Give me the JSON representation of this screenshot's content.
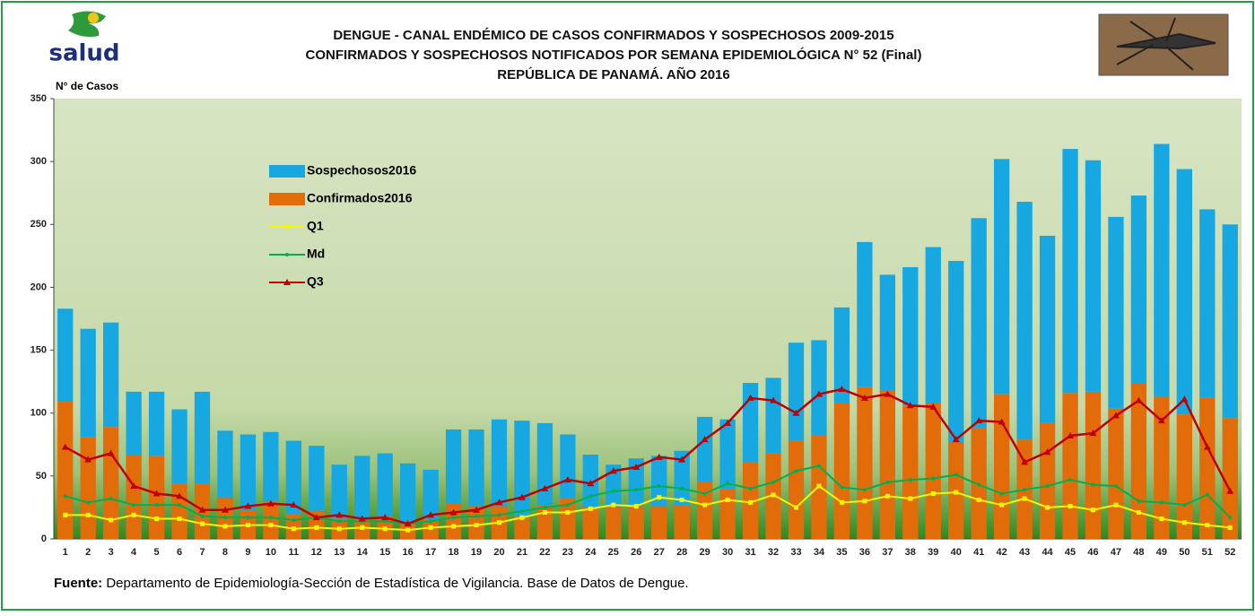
{
  "header": {
    "logo_text": "salud"
  },
  "chart_data": {
    "type": "bar",
    "stacked": true,
    "title": [
      "DENGUE - CANAL ENDÉMICO DE CASOS CONFIRMADOS Y SOSPECHOSOS 2009-2015",
      "CONFIRMADOS Y SOSPECHOSOS NOTIFICADOS POR SEMANA EPIDEMIOLÓGICA N° 52 (Final)",
      "REPÚBLICA DE PANAMÁ. AÑO 2016"
    ],
    "y_label": "N° de Casos",
    "categories": [
      "1",
      "2",
      "3",
      "4",
      "5",
      "6",
      "7",
      "8",
      "9",
      "10",
      "11",
      "12",
      "13",
      "14",
      "15",
      "16",
      "17",
      "18",
      "19",
      "20",
      "21",
      "22",
      "23",
      "24",
      "25",
      "26",
      "27",
      "28",
      "29",
      "30",
      "31",
      "32",
      "33",
      "34",
      "35",
      "36",
      "37",
      "38",
      "39",
      "40",
      "41",
      "42",
      "43",
      "44",
      "45",
      "46",
      "47",
      "48",
      "49",
      "50",
      "51",
      "52"
    ],
    "series": [
      {
        "name": "Confirmados2016",
        "type": "bar",
        "color": "#e36c0a",
        "values": [
          109,
          81,
          89,
          67,
          66,
          44,
          44,
          33,
          23,
          30,
          20,
          22,
          16,
          15,
          18,
          12,
          15,
          28,
          26,
          26,
          18,
          27,
          32,
          25,
          25,
          26,
          26,
          27,
          45,
          40,
          61,
          68,
          78,
          82,
          108,
          121,
          118,
          106,
          108,
          77,
          88,
          115,
          79,
          92,
          116,
          117,
          104,
          124,
          113,
          99,
          112,
          96
        ]
      },
      {
        "name": "Sospechosos2016",
        "type": "bar",
        "color": "#17a8e1",
        "values": [
          74,
          86,
          83,
          50,
          51,
          59,
          73,
          53,
          60,
          55,
          58,
          52,
          43,
          51,
          50,
          48,
          40,
          59,
          61,
          69,
          76,
          65,
          51,
          42,
          34,
          38,
          40,
          43,
          52,
          55,
          63,
          60,
          78,
          76,
          76,
          115,
          92,
          110,
          124,
          144,
          167,
          187,
          189,
          149,
          194,
          184,
          152,
          149,
          201,
          195,
          150,
          154
        ]
      },
      {
        "name": "Q1",
        "type": "line",
        "marker": "square",
        "color": "#f5f500",
        "values": [
          19,
          19,
          15,
          19,
          16,
          16,
          12,
          10,
          11,
          11,
          8,
          9,
          8,
          9,
          8,
          7,
          9,
          10,
          11,
          13,
          17,
          21,
          21,
          24,
          27,
          26,
          33,
          31,
          27,
          31,
          29,
          35,
          25,
          42,
          29,
          30,
          34,
          32,
          36,
          37,
          31,
          27,
          32,
          25,
          26,
          23,
          27,
          21,
          16,
          13,
          11,
          9
        ]
      },
      {
        "name": "Md",
        "type": "line",
        "marker": "circle",
        "color": "#00b050",
        "values": [
          34,
          29,
          32,
          27,
          27,
          27,
          18,
          17,
          17,
          17,
          15,
          17,
          14,
          14,
          14,
          12,
          14,
          17,
          18,
          19,
          22,
          25,
          27,
          34,
          38,
          39,
          42,
          40,
          36,
          44,
          40,
          45,
          54,
          58,
          41,
          39,
          45,
          47,
          48,
          51,
          43,
          36,
          39,
          42,
          47,
          43,
          42,
          30,
          29,
          27,
          35,
          17
        ]
      },
      {
        "name": "Q3",
        "type": "line",
        "marker": "triangle",
        "color": "#c00000",
        "values": [
          73,
          63,
          68,
          42,
          36,
          34,
          23,
          23,
          26,
          28,
          27,
          17,
          19,
          16,
          17,
          12,
          19,
          21,
          23,
          29,
          33,
          40,
          47,
          44,
          54,
          57,
          65,
          63,
          79,
          92,
          112,
          110,
          100,
          115,
          119,
          112,
          115,
          106,
          105,
          79,
          94,
          93,
          61,
          69,
          82,
          84,
          98,
          110,
          94,
          111,
          73,
          38
        ]
      }
    ],
    "legend_order": [
      1,
      0,
      2,
      3,
      4
    ],
    "ylim": [
      0,
      350
    ],
    "yticks": [
      0,
      50,
      100,
      150,
      200,
      250,
      300,
      350
    ],
    "grid": false,
    "source_label": "Fuente:",
    "source_text": "Departamento de Epidemiología-Sección de Estadística de Vigilancia. Base de Datos de Dengue."
  }
}
